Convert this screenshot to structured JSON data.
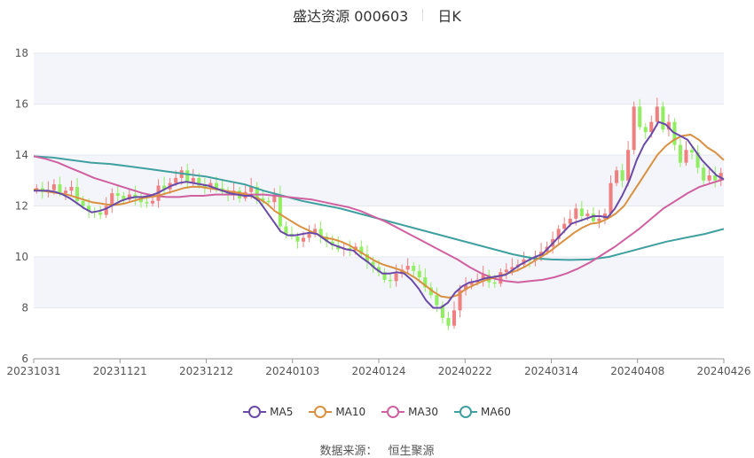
{
  "header": {
    "title": "盛达资源 000603",
    "period": "日K"
  },
  "source": {
    "label": "数据来源：",
    "provider": "恒生聚源"
  },
  "chart_data": {
    "type": "candlestick",
    "ylim": [
      6,
      18
    ],
    "yticks": [
      6,
      8,
      10,
      12,
      14,
      16,
      18
    ],
    "xticks": [
      "20231031",
      "20231121",
      "20231212",
      "20240103",
      "20240124",
      "20240222",
      "20240314",
      "20240408",
      "20240426"
    ],
    "colors": {
      "up": "#f08080",
      "down": "#90ee60"
    },
    "candles_close": [
      12.7,
      12.55,
      12.62,
      12.85,
      12.5,
      12.6,
      12.75,
      12.2,
      12.0,
      11.8,
      11.75,
      11.65,
      12.0,
      12.5,
      12.4,
      12.25,
      12.45,
      12.3,
      12.15,
      12.1,
      12.2,
      12.8,
      12.65,
      12.9,
      13.1,
      13.4,
      12.9,
      13.1,
      12.8,
      12.75,
      12.9,
      12.7,
      12.55,
      12.45,
      12.6,
      12.3,
      12.55,
      12.75,
      12.3,
      12.2,
      12.15,
      12.45,
      11.2,
      10.9,
      10.8,
      10.6,
      10.75,
      10.9,
      11.1,
      10.8,
      10.6,
      10.45,
      10.3,
      10.35,
      10.25,
      10.4,
      10.1,
      9.8,
      9.6,
      9.4,
      9.1,
      9.05,
      9.35,
      9.5,
      9.65,
      9.45,
      9.2,
      8.8,
      8.5,
      8.1,
      7.6,
      7.3,
      7.9,
      8.7,
      8.9,
      9.0,
      9.1,
      9.3,
      9.0,
      8.95,
      9.4,
      9.5,
      9.6,
      9.7,
      9.9,
      9.85,
      10.0,
      10.2,
      10.4,
      10.7,
      11.1,
      11.3,
      11.5,
      11.9,
      11.6,
      11.7,
      11.4,
      11.5,
      11.7,
      12.9,
      13.4,
      13.0,
      14.2,
      15.9,
      15.1,
      14.9,
      15.3,
      15.9,
      15.0,
      15.3,
      14.4,
      13.7,
      14.2,
      14.1,
      13.5,
      13.0,
      13.2,
      13.0,
      13.3
    ],
    "ma5": [
      12.6,
      12.6,
      12.6,
      12.55,
      12.45,
      12.3,
      12.1,
      11.9,
      11.75,
      11.8,
      11.9,
      12.05,
      12.2,
      12.3,
      12.35,
      12.35,
      12.4,
      12.5,
      12.65,
      12.8,
      12.9,
      12.95,
      12.9,
      12.85,
      12.8,
      12.7,
      12.6,
      12.5,
      12.45,
      12.4,
      12.4,
      12.2,
      11.8,
      11.4,
      11.0,
      10.85,
      10.85,
      10.9,
      10.95,
      10.9,
      10.7,
      10.5,
      10.4,
      10.3,
      10.25,
      10.0,
      9.8,
      9.55,
      9.35,
      9.35,
      9.4,
      9.35,
      9.1,
      8.75,
      8.3,
      8.0,
      8.0,
      8.2,
      8.6,
      8.85,
      9.0,
      9.05,
      9.15,
      9.2,
      9.25,
      9.3,
      9.5,
      9.7,
      9.85,
      10.0,
      10.1,
      10.4,
      10.7,
      11.0,
      11.3,
      11.4,
      11.5,
      11.6,
      11.6,
      11.55,
      11.9,
      12.4,
      13.0,
      13.8,
      14.4,
      14.8,
      15.3,
      15.2,
      14.9,
      14.75,
      14.6,
      14.2,
      13.8,
      13.5,
      13.2,
      13.05
    ],
    "ma10": [
      12.65,
      12.6,
      12.55,
      12.5,
      12.45,
      12.35,
      12.25,
      12.15,
      12.1,
      12.05,
      12.05,
      12.1,
      12.2,
      12.3,
      12.35,
      12.4,
      12.5,
      12.6,
      12.7,
      12.75,
      12.75,
      12.7,
      12.65,
      12.6,
      12.55,
      12.5,
      12.4,
      12.3,
      12.1,
      11.8,
      11.6,
      11.4,
      11.2,
      11.05,
      10.9,
      10.75,
      10.7,
      10.6,
      10.45,
      10.25,
      10.05,
      9.85,
      9.7,
      9.6,
      9.5,
      9.35,
      9.15,
      8.9,
      8.65,
      8.45,
      8.4,
      8.5,
      8.75,
      8.9,
      9.05,
      9.15,
      9.25,
      9.35,
      9.45,
      9.6,
      9.8,
      10.0,
      10.2,
      10.45,
      10.7,
      10.95,
      11.15,
      11.3,
      11.35,
      11.5,
      11.7,
      12.0,
      12.5,
      13.0,
      13.5,
      14.0,
      14.35,
      14.6,
      14.75,
      14.8,
      14.6,
      14.3,
      14.1,
      13.8
    ],
    "ma30": [
      13.95,
      13.85,
      13.7,
      13.5,
      13.3,
      13.1,
      12.95,
      12.8,
      12.65,
      12.5,
      12.4,
      12.35,
      12.35,
      12.4,
      12.4,
      12.45,
      12.45,
      12.45,
      12.45,
      12.45,
      12.4,
      12.35,
      12.3,
      12.25,
      12.15,
      12.05,
      11.95,
      11.8,
      11.6,
      11.4,
      11.15,
      10.9,
      10.65,
      10.4,
      10.15,
      9.9,
      9.6,
      9.35,
      9.15,
      9.05,
      9.0,
      9.05,
      9.1,
      9.2,
      9.35,
      9.55,
      9.8,
      10.1,
      10.4,
      10.75,
      11.1,
      11.5,
      11.9,
      12.2,
      12.5,
      12.75,
      12.9,
      13.05
    ],
    "ma60": [
      13.95,
      13.9,
      13.8,
      13.7,
      13.65,
      13.55,
      13.45,
      13.35,
      13.25,
      13.15,
      13.0,
      12.85,
      12.6,
      12.4,
      12.2,
      12.05,
      11.9,
      11.7,
      11.5,
      11.3,
      11.1,
      10.9,
      10.7,
      10.5,
      10.3,
      10.1,
      9.95,
      9.9,
      9.88,
      9.9,
      10.0,
      10.2,
      10.4,
      10.6,
      10.75,
      10.9,
      11.1
    ],
    "legend": [
      {
        "name": "MA5",
        "color": "#6a4aa8"
      },
      {
        "name": "MA10",
        "color": "#d99040"
      },
      {
        "name": "MA30",
        "color": "#d060a0"
      },
      {
        "name": "MA60",
        "color": "#40a0a0"
      }
    ]
  }
}
